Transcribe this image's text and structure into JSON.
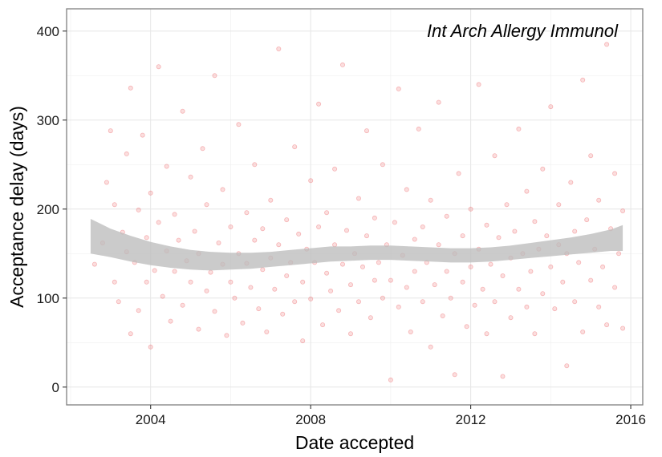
{
  "chart_data": {
    "type": "scatter",
    "xlabel": "Date accepted",
    "ylabel": "Acceptance delay (days)",
    "annotation": "Int Arch Allergy Immunol",
    "xlim": [
      2001.9,
      2016.3
    ],
    "ylim": [
      -20,
      425
    ],
    "x_ticks": [
      2004,
      2008,
      2012,
      2016
    ],
    "y_ticks": [
      0,
      100,
      200,
      300,
      400
    ],
    "grid": true,
    "legend": "none",
    "point_color": "#e8464a",
    "point_alpha": 0.18,
    "band_color": "#bdbdbd",
    "smooth": {
      "x": [
        2002.5,
        2003.0,
        2003.5,
        2004.0,
        2004.5,
        2005.0,
        2005.5,
        2006.0,
        2006.5,
        2007.0,
        2007.5,
        2008.0,
        2008.5,
        2009.0,
        2009.5,
        2010.0,
        2010.5,
        2011.0,
        2011.5,
        2012.0,
        2012.5,
        2013.0,
        2013.5,
        2014.0,
        2014.5,
        2015.0,
        2015.5,
        2015.8
      ],
      "fit": [
        168,
        160,
        154,
        149,
        145,
        142,
        141,
        141,
        142,
        143,
        145,
        147,
        149,
        150,
        151,
        151,
        150,
        149,
        148,
        148,
        149,
        151,
        153,
        156,
        159,
        162,
        165,
        167
      ],
      "upper": [
        189,
        178,
        170,
        163,
        158,
        154,
        152,
        151,
        151,
        152,
        154,
        156,
        158,
        158,
        159,
        159,
        158,
        157,
        156,
        156,
        157,
        159,
        162,
        165,
        168,
        172,
        177,
        182
      ],
      "lower": [
        150,
        146,
        141,
        137,
        134,
        132,
        131,
        132,
        133,
        135,
        137,
        139,
        141,
        142,
        143,
        143,
        142,
        141,
        140,
        140,
        141,
        143,
        145,
        147,
        149,
        151,
        153,
        153
      ]
    },
    "points": [
      [
        2002.6,
        138
      ],
      [
        2002.8,
        162
      ],
      [
        2002.9,
        230
      ],
      [
        2003.0,
        288
      ],
      [
        2003.1,
        118
      ],
      [
        2003.1,
        205
      ],
      [
        2003.2,
        96
      ],
      [
        2003.3,
        174
      ],
      [
        2003.4,
        152
      ],
      [
        2003.4,
        262
      ],
      [
        2003.5,
        336
      ],
      [
        2003.5,
        60
      ],
      [
        2003.6,
        140
      ],
      [
        2003.7,
        199
      ],
      [
        2003.7,
        86
      ],
      [
        2003.8,
        283
      ],
      [
        2003.9,
        118
      ],
      [
        2003.9,
        168
      ],
      [
        2004.0,
        218
      ],
      [
        2004.0,
        45
      ],
      [
        2004.1,
        131
      ],
      [
        2004.2,
        185
      ],
      [
        2004.2,
        360
      ],
      [
        2004.3,
        102
      ],
      [
        2004.4,
        153
      ],
      [
        2004.4,
        248
      ],
      [
        2004.5,
        74
      ],
      [
        2004.6,
        130
      ],
      [
        2004.6,
        194
      ],
      [
        2004.7,
        165
      ],
      [
        2004.8,
        310
      ],
      [
        2004.8,
        92
      ],
      [
        2004.9,
        142
      ],
      [
        2005.0,
        236
      ],
      [
        2005.0,
        118
      ],
      [
        2005.1,
        175
      ],
      [
        2005.2,
        65
      ],
      [
        2005.2,
        150
      ],
      [
        2005.3,
        268
      ],
      [
        2005.4,
        108
      ],
      [
        2005.4,
        205
      ],
      [
        2005.5,
        129
      ],
      [
        2005.6,
        350
      ],
      [
        2005.6,
        85
      ],
      [
        2005.7,
        162
      ],
      [
        2005.8,
        138
      ],
      [
        2005.8,
        222
      ],
      [
        2005.9,
        58
      ],
      [
        2006.0,
        118
      ],
      [
        2006.0,
        180
      ],
      [
        2006.1,
        100
      ],
      [
        2006.2,
        150
      ],
      [
        2006.2,
        295
      ],
      [
        2006.3,
        72
      ],
      [
        2006.4,
        139
      ],
      [
        2006.4,
        196
      ],
      [
        2006.5,
        112
      ],
      [
        2006.6,
        165
      ],
      [
        2006.6,
        250
      ],
      [
        2006.7,
        88
      ],
      [
        2006.8,
        132
      ],
      [
        2006.8,
        178
      ],
      [
        2006.9,
        62
      ],
      [
        2007.0,
        145
      ],
      [
        2007.0,
        210
      ],
      [
        2007.1,
        110
      ],
      [
        2007.2,
        380
      ],
      [
        2007.2,
        160
      ],
      [
        2007.3,
        82
      ],
      [
        2007.4,
        125
      ],
      [
        2007.4,
        188
      ],
      [
        2007.5,
        140
      ],
      [
        2007.6,
        270
      ],
      [
        2007.6,
        96
      ],
      [
        2007.7,
        172
      ],
      [
        2007.8,
        118
      ],
      [
        2007.8,
        52
      ],
      [
        2007.9,
        155
      ],
      [
        2008.0,
        232
      ],
      [
        2008.0,
        99
      ],
      [
        2008.1,
        140
      ],
      [
        2008.2,
        180
      ],
      [
        2008.2,
        318
      ],
      [
        2008.3,
        70
      ],
      [
        2008.4,
        128
      ],
      [
        2008.4,
        196
      ],
      [
        2008.5,
        108
      ],
      [
        2008.6,
        160
      ],
      [
        2008.6,
        245
      ],
      [
        2008.7,
        86
      ],
      [
        2008.8,
        138
      ],
      [
        2008.8,
        362
      ],
      [
        2008.9,
        176
      ],
      [
        2009.0,
        115
      ],
      [
        2009.0,
        60
      ],
      [
        2009.1,
        150
      ],
      [
        2009.2,
        212
      ],
      [
        2009.2,
        96
      ],
      [
        2009.3,
        135
      ],
      [
        2009.4,
        288
      ],
      [
        2009.4,
        170
      ],
      [
        2009.5,
        78
      ],
      [
        2009.6,
        120
      ],
      [
        2009.6,
        190
      ],
      [
        2009.7,
        140
      ],
      [
        2009.8,
        250
      ],
      [
        2009.8,
        100
      ],
      [
        2009.9,
        160
      ],
      [
        2010.0,
        8
      ],
      [
        2010.0,
        120
      ],
      [
        2010.1,
        185
      ],
      [
        2010.2,
        335
      ],
      [
        2010.2,
        90
      ],
      [
        2010.3,
        148
      ],
      [
        2010.4,
        222
      ],
      [
        2010.4,
        112
      ],
      [
        2010.5,
        62
      ],
      [
        2010.6,
        166
      ],
      [
        2010.6,
        130
      ],
      [
        2010.7,
        290
      ],
      [
        2010.8,
        96
      ],
      [
        2010.8,
        180
      ],
      [
        2010.9,
        140
      ],
      [
        2011.0,
        45
      ],
      [
        2011.0,
        210
      ],
      [
        2011.1,
        115
      ],
      [
        2011.2,
        160
      ],
      [
        2011.2,
        320
      ],
      [
        2011.3,
        80
      ],
      [
        2011.4,
        130
      ],
      [
        2011.4,
        192
      ],
      [
        2011.5,
        100
      ],
      [
        2011.6,
        14
      ],
      [
        2011.6,
        150
      ],
      [
        2011.7,
        240
      ],
      [
        2011.8,
        118
      ],
      [
        2011.8,
        170
      ],
      [
        2011.9,
        68
      ],
      [
        2012.0,
        135
      ],
      [
        2012.0,
        200
      ],
      [
        2012.1,
        92
      ],
      [
        2012.2,
        155
      ],
      [
        2012.2,
        340
      ],
      [
        2012.3,
        110
      ],
      [
        2012.4,
        182
      ],
      [
        2012.4,
        60
      ],
      [
        2012.5,
        138
      ],
      [
        2012.6,
        260
      ],
      [
        2012.6,
        96
      ],
      [
        2012.7,
        168
      ],
      [
        2012.8,
        125
      ],
      [
        2012.8,
        12
      ],
      [
        2012.9,
        205
      ],
      [
        2013.0,
        145
      ],
      [
        2013.0,
        78
      ],
      [
        2013.1,
        175
      ],
      [
        2013.2,
        290
      ],
      [
        2013.2,
        110
      ],
      [
        2013.3,
        150
      ],
      [
        2013.4,
        220
      ],
      [
        2013.4,
        90
      ],
      [
        2013.5,
        130
      ],
      [
        2013.6,
        186
      ],
      [
        2013.6,
        60
      ],
      [
        2013.7,
        155
      ],
      [
        2013.8,
        245
      ],
      [
        2013.8,
        105
      ],
      [
        2013.9,
        170
      ],
      [
        2014.0,
        135
      ],
      [
        2014.0,
        315
      ],
      [
        2014.1,
        88
      ],
      [
        2014.2,
        160
      ],
      [
        2014.2,
        205
      ],
      [
        2014.3,
        118
      ],
      [
        2014.4,
        24
      ],
      [
        2014.4,
        150
      ],
      [
        2014.5,
        230
      ],
      [
        2014.6,
        96
      ],
      [
        2014.6,
        175
      ],
      [
        2014.7,
        140
      ],
      [
        2014.8,
        345
      ],
      [
        2014.8,
        62
      ],
      [
        2014.9,
        188
      ],
      [
        2015.0,
        120
      ],
      [
        2015.0,
        260
      ],
      [
        2015.1,
        155
      ],
      [
        2015.2,
        90
      ],
      [
        2015.2,
        210
      ],
      [
        2015.3,
        135
      ],
      [
        2015.4,
        385
      ],
      [
        2015.4,
        70
      ],
      [
        2015.5,
        178
      ],
      [
        2015.6,
        112
      ],
      [
        2015.6,
        240
      ],
      [
        2015.7,
        150
      ],
      [
        2015.8,
        66
      ],
      [
        2015.8,
        198
      ]
    ]
  }
}
